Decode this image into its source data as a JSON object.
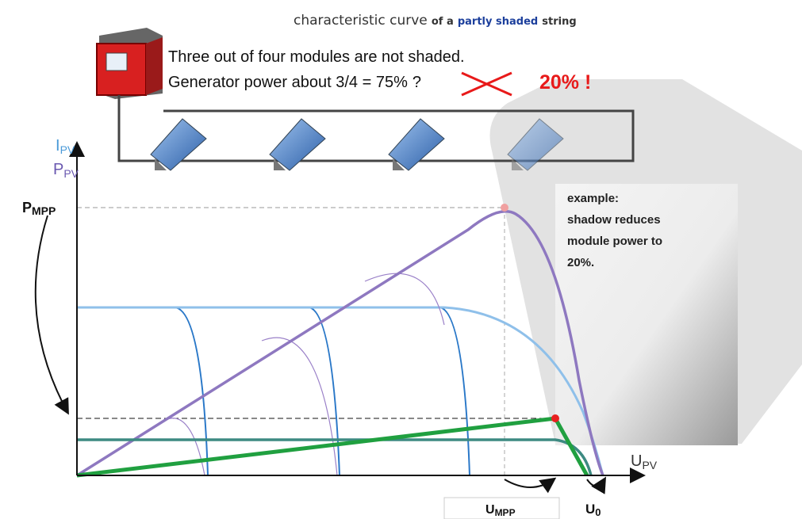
{
  "title": {
    "main": "characteristic curve",
    "of": "of a",
    "highlight": "partly shaded",
    "end": "string"
  },
  "notes": {
    "line1": "Three out of four modules are not shaded.",
    "line2": "Generator power about 3/4 = ",
    "struck": "75%",
    "question": "?",
    "result": "20% !"
  },
  "axis_labels": {
    "current": {
      "main": "I",
      "sub": "PV"
    },
    "power": {
      "main": "P",
      "sub": "PV"
    },
    "p_mpp": {
      "main": "P",
      "sub": "MPP"
    },
    "voltage": {
      "main": "U",
      "sub": "PV"
    },
    "u_mpp": {
      "main": "U",
      "sub": "MPP"
    },
    "u_0": {
      "main": "U",
      "sub": "0"
    }
  },
  "example": [
    "example:",
    "shadow reduces",
    "module power to",
    "20%."
  ]
}
